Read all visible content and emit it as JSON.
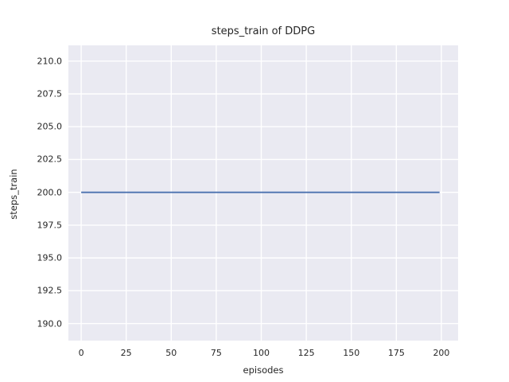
{
  "chart_data": {
    "type": "line",
    "title": "steps_train of DDPG",
    "xlabel": "episodes",
    "ylabel": "steps_train",
    "xlim": [
      -7.1,
      209.3
    ],
    "ylim": [
      188.7,
      211.2
    ],
    "grid": true,
    "legend": false,
    "x_ticks": [
      {
        "value": 0,
        "label": "0"
      },
      {
        "value": 25,
        "label": "25"
      },
      {
        "value": 50,
        "label": "50"
      },
      {
        "value": 75,
        "label": "75"
      },
      {
        "value": 100,
        "label": "100"
      },
      {
        "value": 125,
        "label": "125"
      },
      {
        "value": 150,
        "label": "150"
      },
      {
        "value": 175,
        "label": "175"
      },
      {
        "value": 200,
        "label": "200"
      }
    ],
    "y_ticks": [
      {
        "value": 190.0,
        "label": "190.0"
      },
      {
        "value": 192.5,
        "label": "192.5"
      },
      {
        "value": 195.0,
        "label": "195.0"
      },
      {
        "value": 197.5,
        "label": "197.5"
      },
      {
        "value": 200.0,
        "label": "200.0"
      },
      {
        "value": 202.5,
        "label": "202.5"
      },
      {
        "value": 205.0,
        "label": "205.0"
      },
      {
        "value": 207.5,
        "label": "207.5"
      },
      {
        "value": 210.0,
        "label": "210.0"
      }
    ],
    "series": [
      {
        "name": "steps_train",
        "color": "#4c72b0",
        "x": [
          0,
          199
        ],
        "y": [
          200,
          200
        ]
      }
    ],
    "styles": {
      "figure_bg": "#ffffff",
      "axes_bg": "#eaeaf2",
      "grid_color": "#ffffff",
      "text_color": "#262626"
    }
  }
}
